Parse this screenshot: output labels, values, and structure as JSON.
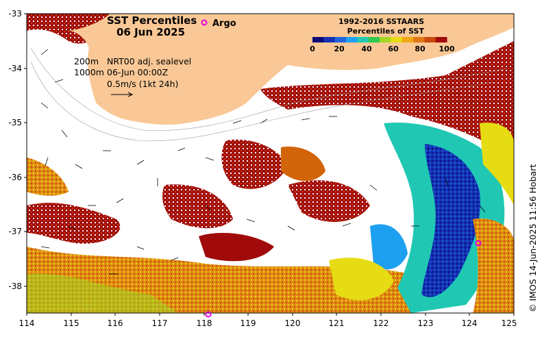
{
  "title": {
    "line1": "SST Percentiles",
    "line2": "06 Jun 2025"
  },
  "argo_legend": {
    "label": "Argo",
    "color": "#e000e0"
  },
  "colorbar": {
    "title_line1": "1992-2016 SSTAARS",
    "title_line2": "Percentiles of SST",
    "ticks": [
      "0",
      "20",
      "40",
      "60",
      "80",
      "100"
    ],
    "colors": [
      "#0a0a78",
      "#1432b4",
      "#1e64dc",
      "#1ea0f0",
      "#20c8b4",
      "#30c850",
      "#a0d820",
      "#e6dc14",
      "#f0a814",
      "#e07814",
      "#c84a0a",
      "#a00a0a"
    ]
  },
  "annotation": {
    "contour_200": "200m",
    "contour_1000": "1000m",
    "source": "NRT00 adj. sealevel",
    "datetime": "06-Jun 00:00Z",
    "scale": "0.5m/s (1kt 24h)"
  },
  "axes": {
    "y_ticks": [
      "-33",
      "-34",
      "-35",
      "-36",
      "-37",
      "-38"
    ],
    "x_ticks": [
      "114",
      "115",
      "116",
      "117",
      "118",
      "119",
      "120",
      "121",
      "122",
      "123",
      "124",
      "125"
    ]
  },
  "credit": "© IMOS 14-Jun-2025 11:56 Hobart",
  "argo_floats": [
    {
      "lon": 124.2,
      "lat": -37.2
    },
    {
      "lon": 118.1,
      "lat": -38.5
    }
  ],
  "colors": {
    "land": "#f9c896",
    "ocean_blank": "#ffffff",
    "hot": "#a00a0a",
    "warm": "#d2640a",
    "mid": "#e6dc14",
    "cool": "#1e64dc",
    "cold": "#0a0a78"
  }
}
